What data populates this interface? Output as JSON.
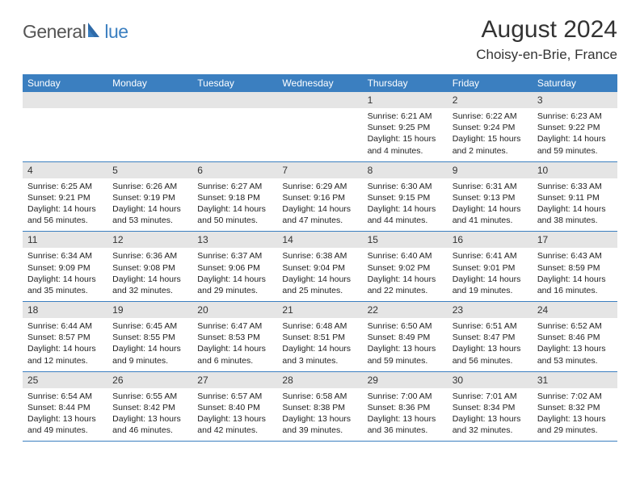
{
  "logo": {
    "part1": "General",
    "part2": "lue"
  },
  "header": {
    "title": "August 2024",
    "location": "Choisy-en-Brie, France"
  },
  "dayheads": [
    "Sunday",
    "Monday",
    "Tuesday",
    "Wednesday",
    "Thursday",
    "Friday",
    "Saturday"
  ],
  "colors": {
    "header_bar": "#3b7fc0",
    "daynum_bg": "#e5e5e5",
    "logo_gray": "#555555",
    "logo_blue": "#3b7fc0"
  },
  "weeks": [
    {
      "days": [
        {
          "num": "",
          "sunrise": "",
          "sunset": "",
          "day1": "",
          "day2": ""
        },
        {
          "num": "",
          "sunrise": "",
          "sunset": "",
          "day1": "",
          "day2": ""
        },
        {
          "num": "",
          "sunrise": "",
          "sunset": "",
          "day1": "",
          "day2": ""
        },
        {
          "num": "",
          "sunrise": "",
          "sunset": "",
          "day1": "",
          "day2": ""
        },
        {
          "num": "1",
          "sunrise": "Sunrise: 6:21 AM",
          "sunset": "Sunset: 9:25 PM",
          "day1": "Daylight: 15 hours",
          "day2": "and 4 minutes."
        },
        {
          "num": "2",
          "sunrise": "Sunrise: 6:22 AM",
          "sunset": "Sunset: 9:24 PM",
          "day1": "Daylight: 15 hours",
          "day2": "and 2 minutes."
        },
        {
          "num": "3",
          "sunrise": "Sunrise: 6:23 AM",
          "sunset": "Sunset: 9:22 PM",
          "day1": "Daylight: 14 hours",
          "day2": "and 59 minutes."
        }
      ]
    },
    {
      "days": [
        {
          "num": "4",
          "sunrise": "Sunrise: 6:25 AM",
          "sunset": "Sunset: 9:21 PM",
          "day1": "Daylight: 14 hours",
          "day2": "and 56 minutes."
        },
        {
          "num": "5",
          "sunrise": "Sunrise: 6:26 AM",
          "sunset": "Sunset: 9:19 PM",
          "day1": "Daylight: 14 hours",
          "day2": "and 53 minutes."
        },
        {
          "num": "6",
          "sunrise": "Sunrise: 6:27 AM",
          "sunset": "Sunset: 9:18 PM",
          "day1": "Daylight: 14 hours",
          "day2": "and 50 minutes."
        },
        {
          "num": "7",
          "sunrise": "Sunrise: 6:29 AM",
          "sunset": "Sunset: 9:16 PM",
          "day1": "Daylight: 14 hours",
          "day2": "and 47 minutes."
        },
        {
          "num": "8",
          "sunrise": "Sunrise: 6:30 AM",
          "sunset": "Sunset: 9:15 PM",
          "day1": "Daylight: 14 hours",
          "day2": "and 44 minutes."
        },
        {
          "num": "9",
          "sunrise": "Sunrise: 6:31 AM",
          "sunset": "Sunset: 9:13 PM",
          "day1": "Daylight: 14 hours",
          "day2": "and 41 minutes."
        },
        {
          "num": "10",
          "sunrise": "Sunrise: 6:33 AM",
          "sunset": "Sunset: 9:11 PM",
          "day1": "Daylight: 14 hours",
          "day2": "and 38 minutes."
        }
      ]
    },
    {
      "days": [
        {
          "num": "11",
          "sunrise": "Sunrise: 6:34 AM",
          "sunset": "Sunset: 9:09 PM",
          "day1": "Daylight: 14 hours",
          "day2": "and 35 minutes."
        },
        {
          "num": "12",
          "sunrise": "Sunrise: 6:36 AM",
          "sunset": "Sunset: 9:08 PM",
          "day1": "Daylight: 14 hours",
          "day2": "and 32 minutes."
        },
        {
          "num": "13",
          "sunrise": "Sunrise: 6:37 AM",
          "sunset": "Sunset: 9:06 PM",
          "day1": "Daylight: 14 hours",
          "day2": "and 29 minutes."
        },
        {
          "num": "14",
          "sunrise": "Sunrise: 6:38 AM",
          "sunset": "Sunset: 9:04 PM",
          "day1": "Daylight: 14 hours",
          "day2": "and 25 minutes."
        },
        {
          "num": "15",
          "sunrise": "Sunrise: 6:40 AM",
          "sunset": "Sunset: 9:02 PM",
          "day1": "Daylight: 14 hours",
          "day2": "and 22 minutes."
        },
        {
          "num": "16",
          "sunrise": "Sunrise: 6:41 AM",
          "sunset": "Sunset: 9:01 PM",
          "day1": "Daylight: 14 hours",
          "day2": "and 19 minutes."
        },
        {
          "num": "17",
          "sunrise": "Sunrise: 6:43 AM",
          "sunset": "Sunset: 8:59 PM",
          "day1": "Daylight: 14 hours",
          "day2": "and 16 minutes."
        }
      ]
    },
    {
      "days": [
        {
          "num": "18",
          "sunrise": "Sunrise: 6:44 AM",
          "sunset": "Sunset: 8:57 PM",
          "day1": "Daylight: 14 hours",
          "day2": "and 12 minutes."
        },
        {
          "num": "19",
          "sunrise": "Sunrise: 6:45 AM",
          "sunset": "Sunset: 8:55 PM",
          "day1": "Daylight: 14 hours",
          "day2": "and 9 minutes."
        },
        {
          "num": "20",
          "sunrise": "Sunrise: 6:47 AM",
          "sunset": "Sunset: 8:53 PM",
          "day1": "Daylight: 14 hours",
          "day2": "and 6 minutes."
        },
        {
          "num": "21",
          "sunrise": "Sunrise: 6:48 AM",
          "sunset": "Sunset: 8:51 PM",
          "day1": "Daylight: 14 hours",
          "day2": "and 3 minutes."
        },
        {
          "num": "22",
          "sunrise": "Sunrise: 6:50 AM",
          "sunset": "Sunset: 8:49 PM",
          "day1": "Daylight: 13 hours",
          "day2": "and 59 minutes."
        },
        {
          "num": "23",
          "sunrise": "Sunrise: 6:51 AM",
          "sunset": "Sunset: 8:47 PM",
          "day1": "Daylight: 13 hours",
          "day2": "and 56 minutes."
        },
        {
          "num": "24",
          "sunrise": "Sunrise: 6:52 AM",
          "sunset": "Sunset: 8:46 PM",
          "day1": "Daylight: 13 hours",
          "day2": "and 53 minutes."
        }
      ]
    },
    {
      "days": [
        {
          "num": "25",
          "sunrise": "Sunrise: 6:54 AM",
          "sunset": "Sunset: 8:44 PM",
          "day1": "Daylight: 13 hours",
          "day2": "and 49 minutes."
        },
        {
          "num": "26",
          "sunrise": "Sunrise: 6:55 AM",
          "sunset": "Sunset: 8:42 PM",
          "day1": "Daylight: 13 hours",
          "day2": "and 46 minutes."
        },
        {
          "num": "27",
          "sunrise": "Sunrise: 6:57 AM",
          "sunset": "Sunset: 8:40 PM",
          "day1": "Daylight: 13 hours",
          "day2": "and 42 minutes."
        },
        {
          "num": "28",
          "sunrise": "Sunrise: 6:58 AM",
          "sunset": "Sunset: 8:38 PM",
          "day1": "Daylight: 13 hours",
          "day2": "and 39 minutes."
        },
        {
          "num": "29",
          "sunrise": "Sunrise: 7:00 AM",
          "sunset": "Sunset: 8:36 PM",
          "day1": "Daylight: 13 hours",
          "day2": "and 36 minutes."
        },
        {
          "num": "30",
          "sunrise": "Sunrise: 7:01 AM",
          "sunset": "Sunset: 8:34 PM",
          "day1": "Daylight: 13 hours",
          "day2": "and 32 minutes."
        },
        {
          "num": "31",
          "sunrise": "Sunrise: 7:02 AM",
          "sunset": "Sunset: 8:32 PM",
          "day1": "Daylight: 13 hours",
          "day2": "and 29 minutes."
        }
      ]
    }
  ]
}
